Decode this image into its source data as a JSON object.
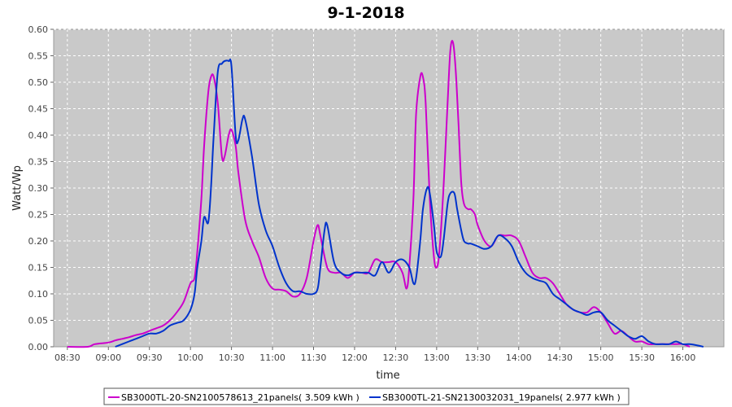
{
  "chart_data": {
    "type": "line",
    "title": "9-1-2018",
    "xlabel": "time",
    "ylabel": "Watt/Wp",
    "xlim": [
      "08:20",
      "16:30"
    ],
    "ylim": [
      0,
      0.6
    ],
    "x_ticks": [
      "08:30",
      "09:00",
      "09:30",
      "10:00",
      "10:30",
      "11:00",
      "11:30",
      "12:00",
      "12:30",
      "13:00",
      "13:30",
      "14:00",
      "14:30",
      "15:00",
      "15:30",
      "16:00"
    ],
    "y_ticks": [
      "0.00",
      "0.05",
      "0.10",
      "0.15",
      "0.20",
      "0.25",
      "0.30",
      "0.35",
      "0.40",
      "0.45",
      "0.50",
      "0.55",
      "0.60"
    ],
    "grid": true,
    "legend_position": "bottom",
    "series": [
      {
        "name": "SB3000TL-20-SN2100578613_21panels( 3.509 kWh )",
        "color": "#cc00cc",
        "x": [
          "08:30",
          "08:45",
          "08:50",
          "09:00",
          "09:05",
          "09:10",
          "09:15",
          "09:20",
          "09:25",
          "09:30",
          "09:35",
          "09:40",
          "09:45",
          "09:50",
          "09:55",
          "10:00",
          "10:03",
          "10:05",
          "10:08",
          "10:10",
          "10:13",
          "10:15",
          "10:17",
          "10:20",
          "10:23",
          "10:25",
          "10:28",
          "10:30",
          "10:33",
          "10:35",
          "10:40",
          "10:45",
          "10:50",
          "10:55",
          "11:00",
          "11:05",
          "11:10",
          "11:15",
          "11:20",
          "11:25",
          "11:30",
          "11:33",
          "11:35",
          "11:40",
          "11:45",
          "11:50",
          "11:55",
          "12:00",
          "12:05",
          "12:10",
          "12:15",
          "12:20",
          "12:25",
          "12:30",
          "12:35",
          "12:38",
          "12:40",
          "12:43",
          "12:45",
          "12:48",
          "12:50",
          "12:52",
          "12:55",
          "12:58",
          "13:00",
          "13:02",
          "13:05",
          "13:08",
          "13:10",
          "13:12",
          "13:14",
          "13:16",
          "13:18",
          "13:20",
          "13:23",
          "13:25",
          "13:28",
          "13:30",
          "13:35",
          "13:40",
          "13:45",
          "13:50",
          "13:55",
          "14:00",
          "14:05",
          "14:10",
          "14:15",
          "14:20",
          "14:25",
          "14:30",
          "14:35",
          "14:40",
          "14:45",
          "14:50",
          "14:55",
          "15:00",
          "15:05",
          "15:10",
          "15:15",
          "15:20",
          "15:25",
          "15:30",
          "15:35",
          "15:40",
          "15:45",
          "15:50",
          "15:55",
          "16:00",
          "16:05"
        ],
        "values": [
          0.0,
          0.0,
          0.005,
          0.008,
          0.012,
          0.015,
          0.018,
          0.022,
          0.025,
          0.03,
          0.035,
          0.04,
          0.05,
          0.065,
          0.085,
          0.12,
          0.13,
          0.18,
          0.28,
          0.38,
          0.48,
          0.51,
          0.51,
          0.46,
          0.36,
          0.36,
          0.4,
          0.41,
          0.38,
          0.33,
          0.24,
          0.2,
          0.17,
          0.13,
          0.11,
          0.108,
          0.105,
          0.095,
          0.1,
          0.13,
          0.2,
          0.23,
          0.21,
          0.15,
          0.14,
          0.14,
          0.13,
          0.14,
          0.14,
          0.14,
          0.165,
          0.16,
          0.16,
          0.16,
          0.14,
          0.11,
          0.15,
          0.28,
          0.44,
          0.51,
          0.51,
          0.46,
          0.28,
          0.17,
          0.15,
          0.18,
          0.3,
          0.46,
          0.56,
          0.575,
          0.52,
          0.42,
          0.31,
          0.27,
          0.26,
          0.26,
          0.25,
          0.23,
          0.2,
          0.19,
          0.21,
          0.21,
          0.21,
          0.2,
          0.17,
          0.14,
          0.13,
          0.13,
          0.12,
          0.1,
          0.08,
          0.07,
          0.065,
          0.065,
          0.075,
          0.065,
          0.045,
          0.025,
          0.03,
          0.02,
          0.01,
          0.01,
          0.005,
          0.005,
          0.005,
          0.005,
          0.005,
          0.005,
          0.0
        ]
      },
      {
        "name": "SB3000TL-21-SN2130032031_19panels( 2.977 kWh )",
        "color": "#0033cc",
        "x": [
          "09:05",
          "09:15",
          "09:20",
          "09:25",
          "09:30",
          "09:35",
          "09:40",
          "09:45",
          "09:50",
          "09:55",
          "10:00",
          "10:03",
          "10:05",
          "10:08",
          "10:10",
          "10:13",
          "10:15",
          "10:17",
          "10:20",
          "10:23",
          "10:25",
          "10:28",
          "10:30",
          "10:33",
          "10:35",
          "10:38",
          "10:40",
          "10:45",
          "10:50",
          "10:55",
          "11:00",
          "11:05",
          "11:10",
          "11:15",
          "11:20",
          "11:25",
          "11:30",
          "11:33",
          "11:35",
          "11:38",
          "11:40",
          "11:45",
          "11:50",
          "11:55",
          "12:00",
          "12:05",
          "12:10",
          "12:15",
          "12:20",
          "12:25",
          "12:30",
          "12:35",
          "12:40",
          "12:43",
          "12:45",
          "12:48",
          "12:50",
          "12:53",
          "12:55",
          "12:58",
          "13:00",
          "13:03",
          "13:05",
          "13:08",
          "13:10",
          "13:13",
          "13:15",
          "13:18",
          "13:20",
          "13:23",
          "13:25",
          "13:30",
          "13:35",
          "13:40",
          "13:45",
          "13:50",
          "13:55",
          "14:00",
          "14:05",
          "14:10",
          "14:15",
          "14:20",
          "14:25",
          "14:30",
          "14:35",
          "14:40",
          "14:45",
          "14:50",
          "14:55",
          "15:00",
          "15:05",
          "15:10",
          "15:15",
          "15:20",
          "15:25",
          "15:30",
          "15:35",
          "15:40",
          "15:45",
          "15:50",
          "15:55",
          "16:00",
          "16:05",
          "16:10",
          "16:15"
        ],
        "values": [
          0.0,
          0.01,
          0.015,
          0.02,
          0.025,
          0.025,
          0.03,
          0.04,
          0.045,
          0.05,
          0.07,
          0.1,
          0.15,
          0.2,
          0.245,
          0.235,
          0.3,
          0.4,
          0.52,
          0.535,
          0.54,
          0.54,
          0.53,
          0.4,
          0.39,
          0.43,
          0.43,
          0.36,
          0.27,
          0.22,
          0.19,
          0.15,
          0.12,
          0.105,
          0.105,
          0.1,
          0.1,
          0.11,
          0.15,
          0.22,
          0.23,
          0.16,
          0.14,
          0.135,
          0.14,
          0.14,
          0.14,
          0.135,
          0.16,
          0.14,
          0.16,
          0.165,
          0.15,
          0.12,
          0.13,
          0.2,
          0.26,
          0.3,
          0.29,
          0.23,
          0.18,
          0.17,
          0.2,
          0.27,
          0.29,
          0.29,
          0.26,
          0.22,
          0.2,
          0.195,
          0.195,
          0.19,
          0.185,
          0.19,
          0.21,
          0.205,
          0.19,
          0.16,
          0.14,
          0.13,
          0.125,
          0.12,
          0.1,
          0.09,
          0.08,
          0.07,
          0.065,
          0.06,
          0.065,
          0.065,
          0.05,
          0.04,
          0.03,
          0.02,
          0.015,
          0.02,
          0.01,
          0.005,
          0.005,
          0.005,
          0.01,
          0.005,
          0.005,
          0.003,
          0.0
        ]
      }
    ]
  }
}
